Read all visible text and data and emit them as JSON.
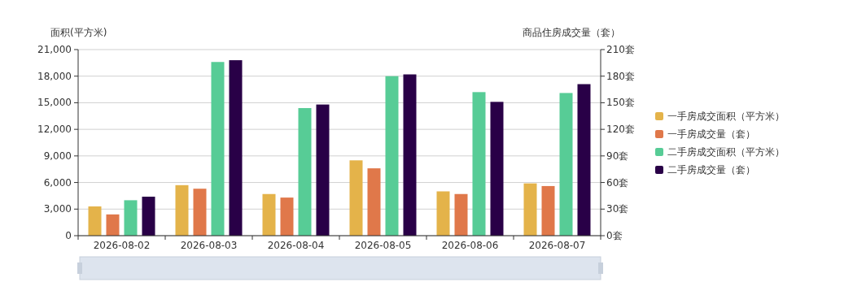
{
  "chart_data": {
    "type": "bar",
    "ylabel": "面积(平方米)",
    "y2label": "商品住房成交量（套）",
    "categories": [
      "2026-08-02",
      "2026-08-03",
      "2026-08-04",
      "2026-08-05",
      "2026-08-06",
      "2026-08-07"
    ],
    "series": [
      {
        "name": "一手房成交面积（平方米）",
        "color": "#e4b34a",
        "values": [
          3300,
          5700,
          4700,
          8500,
          5000,
          5900
        ]
      },
      {
        "name": "一手房成交量（套）",
        "color": "#e0784a",
        "axis": "y2",
        "values": [
          24,
          53,
          43,
          76,
          47,
          56
        ]
      },
      {
        "name": "二手房成交面积（平方米）",
        "color": "#57cc96",
        "values": [
          4000,
          19600,
          14400,
          18000,
          16200,
          16100
        ]
      },
      {
        "name": "二手房成交量（套）",
        "color": "#290047",
        "axis": "y2",
        "values": [
          44,
          198,
          148,
          182,
          151,
          171
        ]
      }
    ],
    "ylim": [
      0,
      21000
    ],
    "yticks": [
      {
        "value": 0,
        "label": "0"
      },
      {
        "value": 3000,
        "label": "3,000"
      },
      {
        "value": 6000,
        "label": "6,000"
      },
      {
        "value": 9000,
        "label": "9,000"
      },
      {
        "value": 12000,
        "label": "12,000"
      },
      {
        "value": 15000,
        "label": "15,000"
      },
      {
        "value": 18000,
        "label": "18,000"
      },
      {
        "value": 21000,
        "label": "21,000"
      }
    ],
    "y2lim": [
      0,
      210
    ],
    "y2ticks": [
      {
        "value": 0,
        "label": "0套"
      },
      {
        "value": 30,
        "label": "30套"
      },
      {
        "value": 60,
        "label": "60套"
      },
      {
        "value": 90,
        "label": "90套"
      },
      {
        "value": 120,
        "label": "120套"
      },
      {
        "value": 150,
        "label": "150套"
      },
      {
        "value": 180,
        "label": "180套"
      },
      {
        "value": 210,
        "label": "210套"
      }
    ],
    "grid": "y",
    "legend": "right"
  }
}
